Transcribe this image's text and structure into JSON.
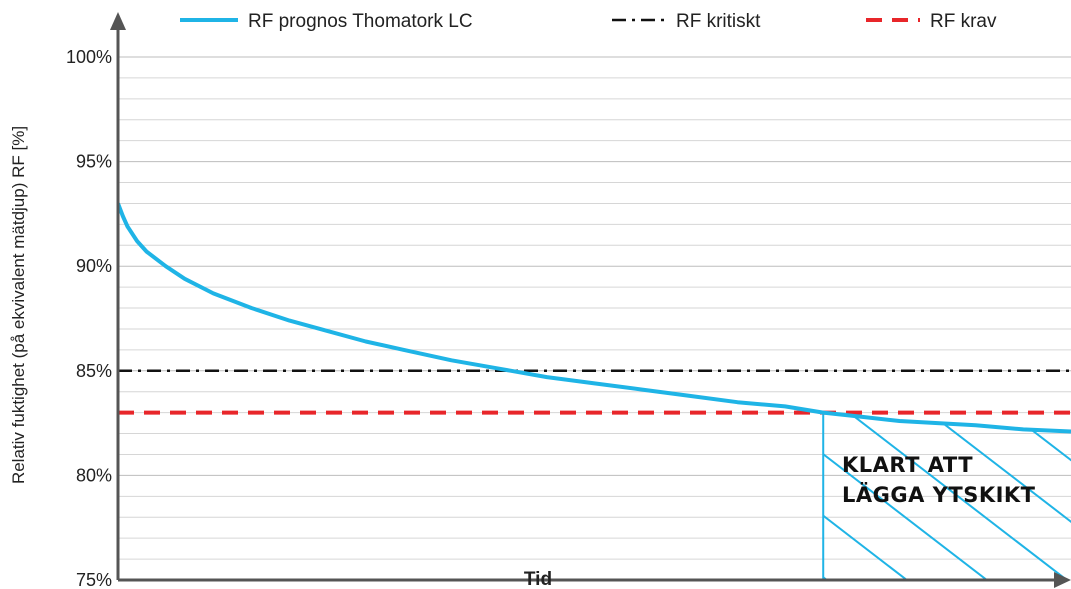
{
  "chart_data": {
    "type": "line",
    "title": "",
    "xlabel": "Tid",
    "ylabel": "Relativ fuktighet (på ekvivalent mätdjup) RF [%]",
    "ylim": [
      75,
      100
    ],
    "ytick_labels": [
      "75%",
      "80%",
      "85%",
      "90%",
      "95%",
      "100%"
    ],
    "ytick_values": [
      75,
      80,
      85,
      90,
      95,
      100
    ],
    "xlim": [
      0,
      100
    ],
    "grid": true,
    "legend_position": "top",
    "series": [
      {
        "name": "RF prognos Thomatork LC",
        "style": "solid",
        "color": "#1fb4e6",
        "x": [
          0,
          0.5,
          1,
          2,
          3,
          5,
          7,
          10,
          14,
          18,
          22,
          26,
          30,
          35,
          40,
          45,
          50,
          55,
          60,
          65,
          70,
          74,
          78,
          82,
          86,
          90,
          95,
          100
        ],
        "y": [
          93,
          92.4,
          91.9,
          91.2,
          90.7,
          90,
          89.4,
          88.7,
          88,
          87.4,
          86.9,
          86.4,
          86.0,
          85.5,
          85.1,
          84.7,
          84.4,
          84.1,
          83.8,
          83.5,
          83.3,
          83.0,
          82.8,
          82.6,
          82.5,
          82.4,
          82.2,
          82.1
        ]
      },
      {
        "name": "RF kritiskt",
        "style": "dash-dot",
        "color": "#111111",
        "x": [
          0,
          100
        ],
        "y": [
          85,
          85
        ]
      },
      {
        "name": "RF krav",
        "style": "dashed",
        "color": "#e8262a",
        "x": [
          0,
          100
        ],
        "y": [
          83,
          83
        ]
      }
    ],
    "annotations": [
      {
        "text_lines": [
          "KLART ATT",
          "LÄGGA  YTSKIKT"
        ],
        "region_x_start": 74,
        "fill": "hatched",
        "color": "#1fb4e6"
      }
    ]
  }
}
